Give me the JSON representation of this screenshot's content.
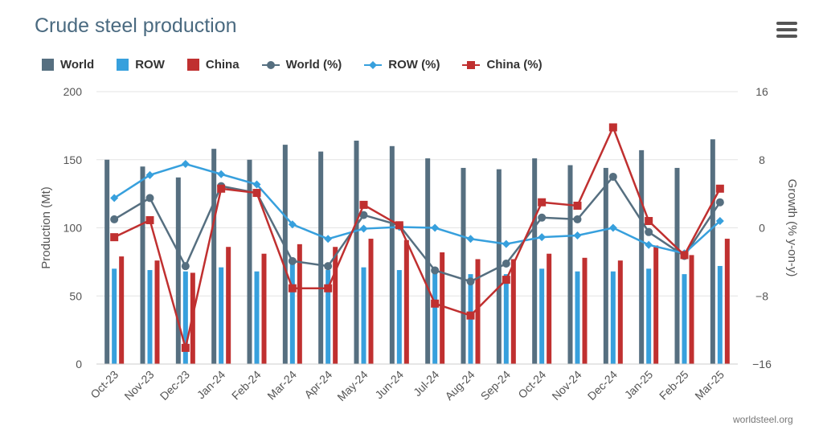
{
  "title": "Crude steel production",
  "credit": "worldsteel.org",
  "menu": {
    "icon": "hamburger-menu-icon"
  },
  "legend": [
    {
      "label": "World",
      "type": "bar",
      "color": "#566f80"
    },
    {
      "label": "ROW",
      "type": "bar",
      "color": "#37a0dd"
    },
    {
      "label": "China",
      "type": "bar",
      "color": "#c03030"
    },
    {
      "label": "World (%)",
      "type": "line",
      "marker": "circle",
      "color": "#566f80"
    },
    {
      "label": "ROW (%)",
      "type": "line",
      "marker": "diamond",
      "color": "#37a0dd"
    },
    {
      "label": "China (%)",
      "type": "line",
      "marker": "square",
      "color": "#c03030"
    }
  ],
  "chart_data": {
    "type": "bar",
    "categories": [
      "Oct-23",
      "Nov-23",
      "Dec-23",
      "Jan-24",
      "Feb-24",
      "Mar-24",
      "Apr-24",
      "May-24",
      "Jun-24",
      "Jul-24",
      "Aug-24",
      "Sep-24",
      "Oct-24",
      "Nov-24",
      "Dec-24",
      "Jan-25",
      "Feb-25",
      "Mar-25"
    ],
    "ylabel": "Production (Mt)",
    "ylabel_right": "Growth (% y-on-y)",
    "ylim": [
      0,
      200
    ],
    "yticks": [
      0,
      50,
      100,
      150,
      200
    ],
    "ylim_right": [
      -16,
      16
    ],
    "yticks_right": [
      -16,
      -8,
      0,
      8,
      16
    ],
    "grid": true,
    "legend_position": "top-left",
    "series": [
      {
        "name": "World",
        "type": "bar",
        "axis": "left",
        "color": "#566f80",
        "values": [
          150,
          145,
          137,
          158,
          150,
          161,
          156,
          164,
          160,
          151,
          144,
          143,
          151,
          146,
          144,
          157,
          144,
          165
        ]
      },
      {
        "name": "ROW",
        "type": "bar",
        "axis": "left",
        "color": "#37a0dd",
        "values": [
          70,
          69,
          68,
          71,
          68,
          75,
          69,
          71,
          69,
          69,
          66,
          66,
          70,
          68,
          68,
          70,
          66,
          72
        ]
      },
      {
        "name": "China",
        "type": "bar",
        "axis": "left",
        "color": "#c03030",
        "values": [
          79,
          76,
          67,
          86,
          81,
          88,
          86,
          92,
          91,
          82,
          77,
          77,
          81,
          78,
          76,
          87,
          80,
          92
        ]
      },
      {
        "name": "World (%)",
        "type": "line",
        "axis": "right",
        "marker": "circle",
        "color": "#566f80",
        "values": [
          1.0,
          3.5,
          -4.5,
          4.9,
          4.1,
          -3.9,
          -4.5,
          1.5,
          0.3,
          -5.0,
          -6.3,
          -4.2,
          1.2,
          1.0,
          6.0,
          -0.5,
          -3.3,
          3.0
        ]
      },
      {
        "name": "ROW (%)",
        "type": "line",
        "axis": "right",
        "marker": "diamond",
        "color": "#37a0dd",
        "values": [
          3.5,
          6.2,
          7.5,
          6.3,
          5.1,
          0.4,
          -1.3,
          -0.1,
          0.1,
          0.0,
          -1.3,
          -1.9,
          -1.1,
          -0.9,
          0.0,
          -2.0,
          -3.0,
          0.8
        ]
      },
      {
        "name": "China (%)",
        "type": "line",
        "axis": "right",
        "marker": "square",
        "color": "#c03030",
        "values": [
          -1.1,
          0.9,
          -14.1,
          4.6,
          4.1,
          -7.1,
          -7.1,
          2.7,
          0.3,
          -8.9,
          -10.3,
          -6.1,
          3.0,
          2.6,
          11.8,
          0.8,
          -3.2,
          4.6
        ]
      }
    ]
  }
}
